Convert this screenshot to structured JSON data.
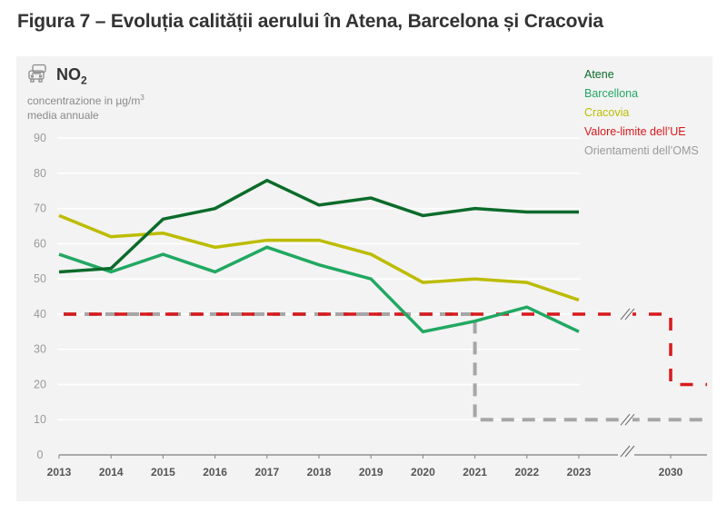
{
  "figure": {
    "title": "Figura 7 – Evoluția calității aerului în Atena, Barcelona și Cracovia"
  },
  "header": {
    "pollutant_icon": "car-icon",
    "pollutant_name": "NO",
    "pollutant_subscript": "2",
    "unit_line1_prefix": "concentrazione in µg/m",
    "unit_line1_superscript": "3",
    "unit_line2": "media annuale"
  },
  "chart_data": {
    "type": "line",
    "title": "NO2",
    "ylabel": "concentrazione in µg/m3 media annuale",
    "xlabel": "",
    "ylim": [
      0,
      90
    ],
    "yticks": [
      0,
      10,
      20,
      30,
      40,
      50,
      60,
      70,
      80,
      90
    ],
    "grid": true,
    "legend_position": "top-right",
    "x": [
      2013,
      2014,
      2015,
      2016,
      2017,
      2018,
      2019,
      2020,
      2021,
      2022,
      2023
    ],
    "xtick_labels": [
      "2013",
      "2014",
      "2015",
      "2016",
      "2017",
      "2018",
      "2019",
      "2020",
      "2021",
      "2022",
      "2023",
      "2030"
    ],
    "axis_break_between": [
      2023,
      2030
    ],
    "series": [
      {
        "name": "Atene",
        "color": "#0b6b2a",
        "values": [
          52,
          53,
          67,
          70,
          78,
          71,
          73,
          68,
          70,
          69,
          69
        ]
      },
      {
        "name": "Barcellona",
        "color": "#21a862",
        "values": [
          57,
          52,
          57,
          52,
          59,
          54,
          50,
          35,
          38,
          42,
          35
        ]
      },
      {
        "name": "Cracovia",
        "color": "#bcbc00",
        "values": [
          68,
          62,
          63,
          59,
          61,
          61,
          57,
          49,
          50,
          49,
          44
        ]
      }
    ],
    "reference_lines": [
      {
        "name": "Valore-limite dell'UE",
        "color": "#d7191c",
        "style": "dashed",
        "steps": [
          {
            "from": 2013,
            "to": 2030,
            "value": 40
          },
          {
            "from": 2030,
            "to": "end",
            "value": 20
          }
        ]
      },
      {
        "name": "Orientamenti dell'OMS",
        "color": "#a6a6a6",
        "style": "dashed",
        "steps": [
          {
            "from": 2013,
            "to": 2021,
            "value": 40
          },
          {
            "from": 2021,
            "to": "end",
            "value": 10
          }
        ]
      }
    ]
  },
  "legend": {
    "items": [
      {
        "label": "Atene",
        "color": "#0b6b2a"
      },
      {
        "label": "Barcellona",
        "color": "#21a862"
      },
      {
        "label": "Cracovia",
        "color": "#bcbc00"
      },
      {
        "label": "Valore-limite dell’UE",
        "color": "#d7191c"
      },
      {
        "label": "Orientamenti dell’OMS",
        "color": "#9a9a9a"
      }
    ]
  }
}
